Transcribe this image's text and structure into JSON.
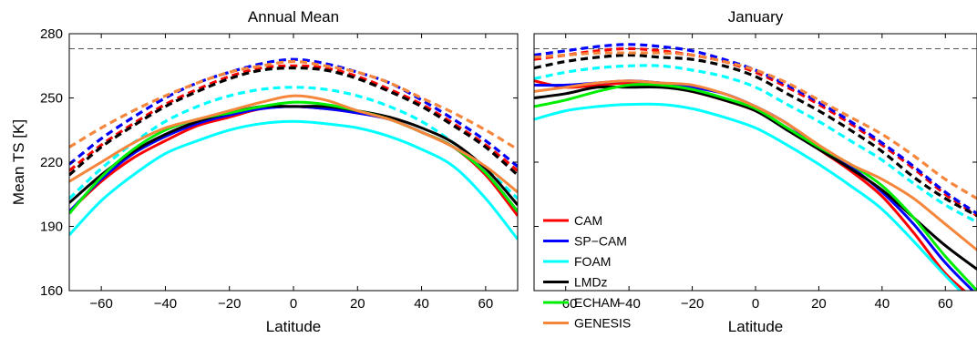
{
  "chart_data": [
    {
      "type": "line",
      "title": "Annual Mean",
      "xlabel": "Latitude",
      "ylabel": "Mean TS [K]",
      "xlim": [
        -70,
        70
      ],
      "ylim": [
        160,
        280
      ],
      "xticks": [
        -60,
        -40,
        -20,
        0,
        20,
        40,
        60
      ],
      "yticks": [
        160,
        190,
        220,
        250,
        280
      ],
      "reference_line": 273,
      "series": [
        {
          "name": "CAM",
          "style": "solid",
          "x": [
            -70,
            -60,
            -50,
            -40,
            -30,
            -20,
            -10,
            0,
            10,
            20,
            30,
            40,
            50,
            60,
            70
          ],
          "y": [
            197,
            211,
            222,
            230,
            237,
            241,
            245,
            246,
            245,
            243,
            240,
            234,
            227,
            214,
            195
          ]
        },
        {
          "name": "SP-CAM",
          "style": "solid",
          "x": [
            -70,
            -60,
            -50,
            -40,
            -30,
            -20,
            -10,
            0,
            10,
            20,
            30,
            40,
            50,
            60,
            70
          ],
          "y": [
            197,
            212,
            224,
            232,
            238,
            242,
            245,
            246,
            245,
            243,
            240,
            234,
            227,
            215,
            197
          ]
        },
        {
          "name": "FOAM",
          "style": "solid",
          "x": [
            -70,
            -60,
            -50,
            -40,
            -30,
            -20,
            -10,
            0,
            10,
            20,
            30,
            40,
            50,
            60,
            70
          ],
          "y": [
            186,
            202,
            214,
            224,
            230,
            235,
            238,
            239,
            238,
            236,
            232,
            226,
            218,
            203,
            184
          ]
        },
        {
          "name": "LMDz",
          "style": "solid",
          "x": [
            -70,
            -60,
            -50,
            -40,
            -30,
            -20,
            -10,
            0,
            10,
            20,
            30,
            40,
            50,
            60,
            70
          ],
          "y": [
            201,
            214,
            225,
            233,
            239,
            243,
            246,
            246,
            246,
            244,
            241,
            236,
            229,
            217,
            200
          ]
        },
        {
          "name": "ECHAM",
          "style": "solid",
          "x": [
            -70,
            -60,
            -50,
            -40,
            -30,
            -20,
            -10,
            0,
            10,
            20,
            30,
            40,
            50,
            60,
            70
          ],
          "y": [
            196,
            213,
            226,
            235,
            240,
            243,
            246,
            248,
            247,
            244,
            240,
            234,
            227,
            215,
            197
          ]
        },
        {
          "name": "GENESIS",
          "style": "solid",
          "x": [
            -70,
            -60,
            -50,
            -40,
            -30,
            -20,
            -10,
            0,
            10,
            20,
            30,
            40,
            50,
            60,
            70
          ],
          "y": [
            211,
            220,
            229,
            236,
            240,
            244,
            248,
            251,
            249,
            244,
            240,
            234,
            227,
            218,
            206
          ]
        },
        {
          "name": "CAM",
          "style": "dashed",
          "x": [
            -70,
            -60,
            -50,
            -40,
            -30,
            -20,
            -10,
            0,
            10,
            20,
            30,
            40,
            50,
            60,
            70
          ],
          "y": [
            216,
            228,
            238,
            247,
            254,
            260,
            264,
            265,
            264,
            260,
            254,
            247,
            238,
            228,
            216
          ]
        },
        {
          "name": "SP-CAM",
          "style": "dashed",
          "x": [
            -70,
            -60,
            -50,
            -40,
            -30,
            -20,
            -10,
            0,
            10,
            20,
            30,
            40,
            50,
            60,
            70
          ],
          "y": [
            219,
            231,
            241,
            250,
            257,
            262,
            266,
            268,
            266,
            262,
            257,
            249,
            240,
            230,
            218
          ]
        },
        {
          "name": "FOAM",
          "style": "dashed",
          "x": [
            -70,
            -60,
            -50,
            -40,
            -30,
            -20,
            -10,
            0,
            10,
            20,
            30,
            40,
            50,
            60,
            70
          ],
          "y": [
            203,
            217,
            229,
            239,
            246,
            251,
            254,
            255,
            254,
            251,
            246,
            239,
            229,
            217,
            203
          ]
        },
        {
          "name": "LMDz",
          "style": "dashed",
          "x": [
            -70,
            -60,
            -50,
            -40,
            -30,
            -20,
            -10,
            0,
            10,
            20,
            30,
            40,
            50,
            60,
            70
          ],
          "y": [
            214,
            227,
            237,
            246,
            253,
            259,
            263,
            264,
            263,
            259,
            253,
            246,
            237,
            227,
            214
          ]
        },
        {
          "name": "GENESIS",
          "style": "dashed",
          "x": [
            -70,
            -60,
            -50,
            -40,
            -30,
            -20,
            -10,
            0,
            10,
            20,
            30,
            40,
            50,
            60,
            70
          ],
          "y": [
            227,
            236,
            244,
            251,
            257,
            262,
            265,
            267,
            265,
            262,
            257,
            250,
            243,
            235,
            226
          ]
        }
      ]
    },
    {
      "type": "line",
      "title": "January",
      "xlabel": "Latitude",
      "ylabel": "",
      "xlim": [
        -70,
        70
      ],
      "ylim": [
        160,
        280
      ],
      "xticks": [
        -60,
        -40,
        -20,
        0,
        20,
        40,
        60
      ],
      "yticks": [
        160,
        190,
        220,
        250,
        280
      ],
      "reference_line": 273,
      "series": [
        {
          "name": "CAM",
          "style": "solid",
          "x": [
            -70,
            -60,
            -50,
            -40,
            -30,
            -20,
            -10,
            0,
            10,
            20,
            30,
            40,
            50,
            60,
            70
          ],
          "y": [
            258,
            255,
            256,
            257,
            256,
            253,
            249,
            244,
            236,
            226,
            216,
            204,
            187,
            168,
            155
          ]
        },
        {
          "name": "SP-CAM",
          "style": "solid",
          "x": [
            -70,
            -60,
            -50,
            -40,
            -30,
            -20,
            -10,
            0,
            10,
            20,
            30,
            40,
            50,
            60,
            70
          ],
          "y": [
            256,
            256,
            257,
            258,
            257,
            255,
            252,
            246,
            238,
            227,
            218,
            206,
            191,
            173,
            158
          ]
        },
        {
          "name": "FOAM",
          "style": "solid",
          "x": [
            -70,
            -60,
            -50,
            -40,
            -30,
            -20,
            -10,
            0,
            10,
            20,
            30,
            40,
            50,
            60,
            70
          ],
          "y": [
            240,
            244,
            246,
            247,
            247,
            245,
            241,
            236,
            228,
            219,
            209,
            198,
            183,
            167,
            152
          ]
        },
        {
          "name": "LMDz",
          "style": "solid",
          "x": [
            -70,
            -60,
            -50,
            -40,
            -30,
            -20,
            -10,
            0,
            10,
            20,
            30,
            40,
            50,
            60,
            70
          ],
          "y": [
            250,
            252,
            255,
            255,
            255,
            253,
            249,
            244,
            235,
            226,
            217,
            207,
            194,
            181,
            170
          ]
        },
        {
          "name": "ECHAM",
          "style": "solid",
          "x": [
            -70,
            -60,
            -50,
            -40,
            -30,
            -20,
            -10,
            0,
            10,
            20,
            30,
            40,
            50,
            60,
            70
          ],
          "y": [
            246,
            249,
            253,
            256,
            256,
            254,
            250,
            245,
            236,
            227,
            219,
            209,
            194,
            176,
            160
          ]
        },
        {
          "name": "GENESIS",
          "style": "solid",
          "x": [
            -70,
            -60,
            -50,
            -40,
            -30,
            -20,
            -10,
            0,
            10,
            20,
            30,
            40,
            50,
            60,
            70
          ],
          "y": [
            253,
            255,
            257,
            258,
            257,
            256,
            252,
            246,
            238,
            228,
            219,
            212,
            203,
            191,
            179
          ]
        },
        {
          "name": "CAM",
          "style": "dashed",
          "x": [
            -70,
            -60,
            -50,
            -40,
            -30,
            -20,
            -10,
            0,
            10,
            20,
            30,
            40,
            50,
            60,
            70
          ],
          "y": [
            268,
            270,
            272,
            273,
            272,
            270,
            267,
            262,
            255,
            247,
            238,
            228,
            217,
            205,
            195
          ]
        },
        {
          "name": "SP-CAM",
          "style": "dashed",
          "x": [
            -70,
            -60,
            -50,
            -40,
            -30,
            -20,
            -10,
            0,
            10,
            20,
            30,
            40,
            50,
            60,
            70
          ],
          "y": [
            270,
            272,
            274,
            275,
            274,
            272,
            268,
            263,
            256,
            248,
            239,
            229,
            218,
            206,
            196
          ]
        },
        {
          "name": "FOAM",
          "style": "dashed",
          "x": [
            -70,
            -60,
            -50,
            -40,
            -30,
            -20,
            -10,
            0,
            10,
            20,
            30,
            40,
            50,
            60,
            70
          ],
          "y": [
            259,
            262,
            264,
            265,
            265,
            263,
            260,
            255,
            247,
            239,
            230,
            221,
            210,
            200,
            192
          ]
        },
        {
          "name": "LMDz",
          "style": "dashed",
          "x": [
            -70,
            -60,
            -50,
            -40,
            -30,
            -20,
            -10,
            0,
            10,
            20,
            30,
            40,
            50,
            60,
            70
          ],
          "y": [
            264,
            267,
            269,
            270,
            269,
            268,
            265,
            260,
            252,
            244,
            235,
            225,
            213,
            203,
            195
          ]
        },
        {
          "name": "GENESIS",
          "style": "dashed",
          "x": [
            -70,
            -60,
            -50,
            -40,
            -30,
            -20,
            -10,
            0,
            10,
            20,
            30,
            40,
            50,
            60,
            70
          ],
          "y": [
            269,
            270,
            271,
            271,
            271,
            270,
            267,
            263,
            257,
            249,
            241,
            233,
            223,
            212,
            203
          ]
        }
      ]
    }
  ],
  "legend": {
    "placement": "lower-left of January panel",
    "entries": [
      "CAM",
      "SP−CAM",
      "FOAM",
      "LMDz",
      "ECHAM",
      "GENESIS"
    ]
  },
  "colors": {
    "CAM": "#ff0000",
    "SP-CAM": "#0000ff",
    "FOAM": "#00ffff",
    "LMDz": "#000000",
    "ECHAM": "#00ee00",
    "GENESIS": "#f5863c",
    "reference": "#555555"
  }
}
